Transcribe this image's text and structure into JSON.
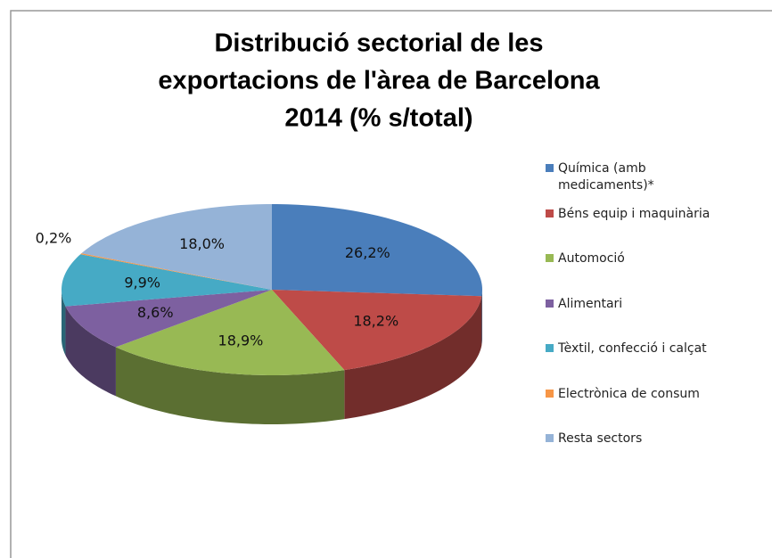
{
  "chart_data": {
    "type": "pie",
    "title": [
      "Distribució sectorial de les",
      "exportacions  de l'àrea de Barcelona",
      "2014 (% s/total)"
    ],
    "categories": [
      "Química (amb medicaments)*",
      "Béns equip i maquinària",
      "Automoció",
      "Alimentari",
      "Tèxtil, confecció i calçat",
      "Electrònica de consum",
      "Resta sectors"
    ],
    "values": [
      26.2,
      18.2,
      18.9,
      8.6,
      9.9,
      0.2,
      18.0
    ],
    "value_labels": [
      "26,2%",
      "18,2%",
      "18,9%",
      "8,6%",
      "9,9%",
      "0,2%",
      "18,0%"
    ],
    "colors": [
      "#4a7ebb",
      "#be4b48",
      "#98b954",
      "#7d60a0",
      "#46aac5",
      "#f79646",
      "#95b3d7"
    ],
    "legend": "right"
  }
}
